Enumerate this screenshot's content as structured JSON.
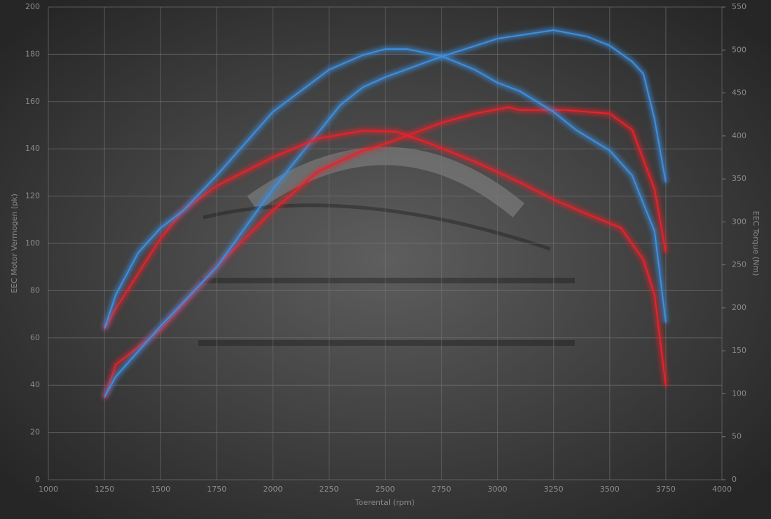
{
  "chart_data": {
    "type": "line",
    "xlabel": "Toerental (rpm)",
    "ylabel": "EEC Motor Vermogen (pk)",
    "y2label": "EEC Torque (Nm)",
    "xlim": [
      1000,
      4000
    ],
    "xticks": [
      1000,
      1250,
      1500,
      1750,
      2000,
      2250,
      2500,
      2750,
      3000,
      3250,
      3500,
      3750,
      4000
    ],
    "ylim": [
      0,
      200
    ],
    "yticks": [
      0,
      20,
      40,
      60,
      80,
      100,
      120,
      140,
      160,
      180,
      200
    ],
    "y2lim": [
      0,
      550
    ],
    "y2ticks": [
      0,
      50,
      100,
      150,
      200,
      250,
      300,
      350,
      400,
      450,
      500,
      550
    ],
    "grid": true,
    "series": [
      {
        "color": "#e8222a",
        "axis": "y",
        "x": [
          1250,
          1300,
          1500,
          1750,
          2000,
          2200,
          2400,
          2500,
          2750,
          2900,
          3050,
          3100,
          3300,
          3500,
          3600,
          3700,
          3750
        ],
        "values": [
          34.4,
          48.7,
          63.5,
          90.2,
          114,
          130.3,
          139.2,
          142.1,
          151,
          154.9,
          157.6,
          156.4,
          156.4,
          154.9,
          148,
          122.8,
          96.1
        ]
      },
      {
        "color": "#3d8fe0",
        "axis": "y",
        "x": [
          1250,
          1300,
          1500,
          1750,
          2000,
          2200,
          2300,
          2400,
          2500,
          2750,
          3000,
          3250,
          3400,
          3500,
          3600,
          3650,
          3700,
          3750
        ],
        "values": [
          35,
          43.6,
          65,
          90,
          123,
          146.6,
          158.5,
          166,
          170.3,
          179,
          186.6,
          190.2,
          187.5,
          183.7,
          176.9,
          171.8,
          152.5,
          125.8
        ]
      },
      {
        "color": "#e8222a",
        "axis": "y2",
        "x": [
          1250,
          1300,
          1400,
          1500,
          1600,
          1750,
          2000,
          2200,
          2400,
          2550,
          2700,
          2900,
          3100,
          3250,
          3400,
          3550,
          3650,
          3700,
          3750
        ],
        "values": [
          175,
          199,
          240,
          281,
          313,
          342,
          375,
          397,
          406,
          405,
          391,
          370,
          346,
          326,
          309,
          293,
          256,
          215,
          109
        ]
      },
      {
        "color": "#3d8fe0",
        "axis": "y2",
        "x": [
          1250,
          1300,
          1400,
          1500,
          1600,
          1750,
          2000,
          2250,
          2400,
          2500,
          2600,
          2750,
          2900,
          3000,
          3100,
          3250,
          3350,
          3500,
          3600,
          3700,
          3750
        ],
        "values": [
          176,
          215,
          264,
          293,
          313,
          354,
          428,
          477,
          494,
          501,
          501,
          493,
          477,
          462,
          452,
          428,
          407,
          383,
          354,
          289,
          183
        ]
      }
    ]
  }
}
